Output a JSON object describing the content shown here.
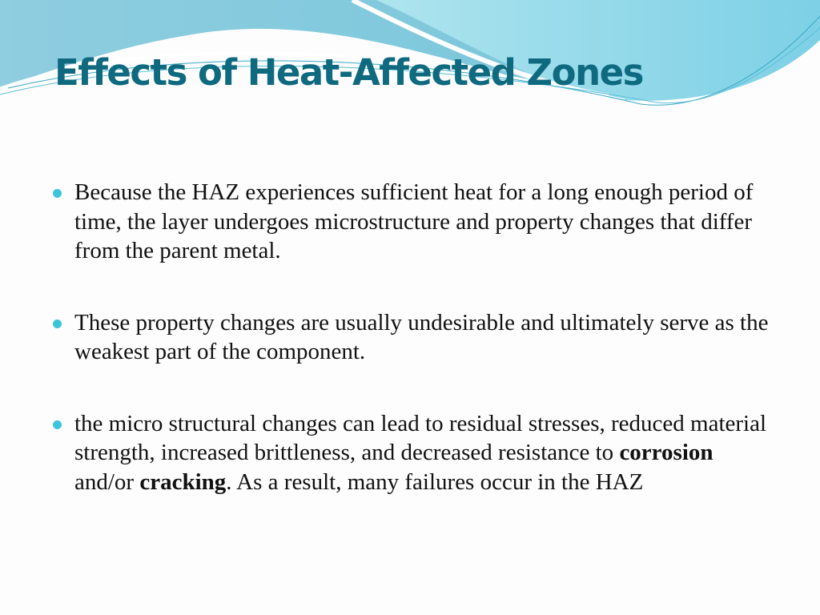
{
  "title": "Effects of Heat-Affected Zones",
  "colors": {
    "title": "#0f6a80",
    "bullet": "#3ec4da",
    "wave": "#7fcfe0"
  },
  "bullets": [
    {
      "text": "Because the HAZ experiences sufficient heat for a long enough period of time, the layer undergoes microstructure and property changes that differ from the parent metal."
    },
    {
      "text": " These property changes are usually undesirable and ultimately serve as the weakest part of the component."
    },
    {
      "text_a": " the micro structural changes can lead to residual stresses, reduced material strength, increased brittleness, and decreased resistance to ",
      "bold_a": "corrosion",
      "text_b": " and/or ",
      "bold_b": "cracking",
      "text_c": ". As a result, many failures occur in the HAZ"
    }
  ]
}
